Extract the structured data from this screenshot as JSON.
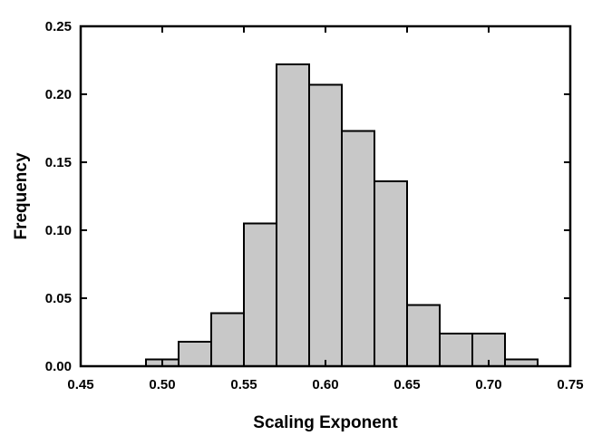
{
  "chart_data": {
    "type": "bar",
    "subtype": "histogram",
    "title": "",
    "xlabel": "Scaling Exponent",
    "ylabel": "Frequency",
    "xlim": [
      0.45,
      0.75
    ],
    "ylim": [
      0.0,
      0.25
    ],
    "x_ticks": [
      "0.45",
      "0.50",
      "0.55",
      "0.60",
      "0.65",
      "0.70",
      "0.75"
    ],
    "y_ticks": [
      "0.00",
      "0.05",
      "0.10",
      "0.15",
      "0.20",
      "0.25"
    ],
    "bin_width": 0.02,
    "bins": [
      {
        "x0": 0.49,
        "x1": 0.51,
        "value": 0.005
      },
      {
        "x0": 0.51,
        "x1": 0.53,
        "value": 0.018
      },
      {
        "x0": 0.53,
        "x1": 0.55,
        "value": 0.039
      },
      {
        "x0": 0.55,
        "x1": 0.57,
        "value": 0.105
      },
      {
        "x0": 0.57,
        "x1": 0.59,
        "value": 0.222
      },
      {
        "x0": 0.59,
        "x1": 0.61,
        "value": 0.207
      },
      {
        "x0": 0.61,
        "x1": 0.63,
        "value": 0.173
      },
      {
        "x0": 0.63,
        "x1": 0.65,
        "value": 0.136
      },
      {
        "x0": 0.65,
        "x1": 0.67,
        "value": 0.045
      },
      {
        "x0": 0.67,
        "x1": 0.69,
        "value": 0.024
      },
      {
        "x0": 0.69,
        "x1": 0.71,
        "value": 0.024
      },
      {
        "x0": 0.71,
        "x1": 0.73,
        "value": 0.005
      }
    ],
    "bar_color": "#c8c8c8",
    "edge_color": "#000000",
    "grid": false,
    "legend": "none"
  }
}
